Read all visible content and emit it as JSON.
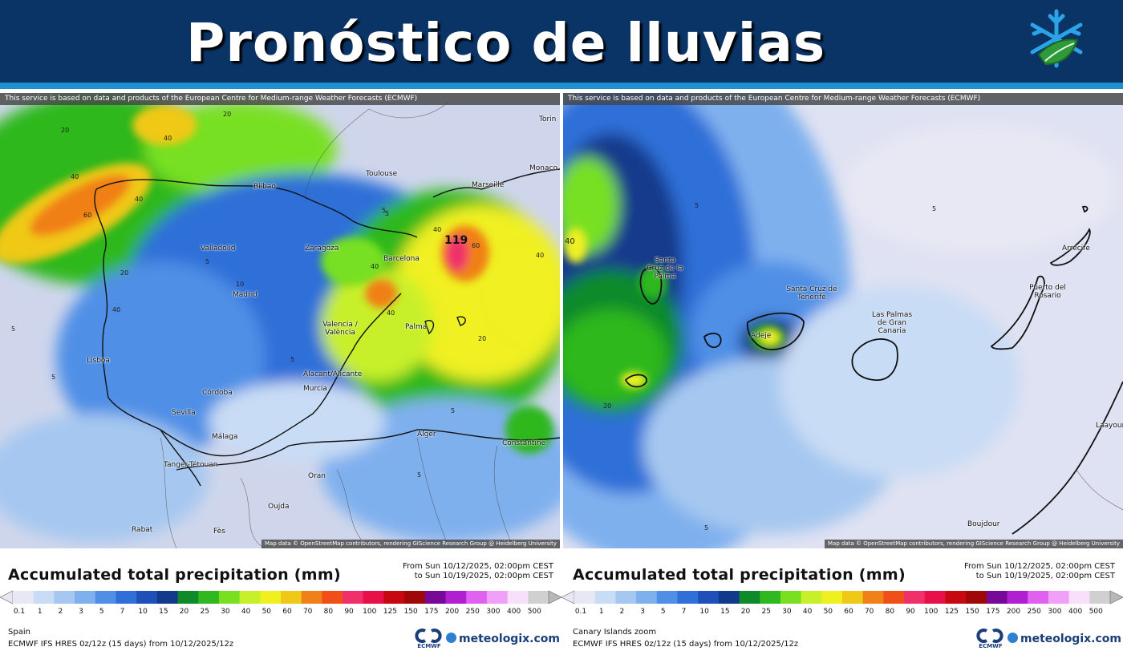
{
  "header": {
    "title": "Pronóstico de lluvias",
    "logo_icon": "snowflake-leaf-icon",
    "colors": {
      "banner": "#0a3366",
      "stripe": "#1e8fd0"
    }
  },
  "panels": [
    {
      "region": "Spain",
      "credit_top": "This service is based on data and products of the European Centre for Medium-range Weather Forecasts (ECMWF)",
      "credit_bottom": "Map data © OpenStreetMap contributors, rendering GIScience Research Group @ Heidelberg University",
      "cities": [
        "Torin",
        "Monaco",
        "Toulouse",
        "Marseille",
        "Bilbao",
        "Valladolid",
        "Zaragoza",
        "Barcelona",
        "Madrid",
        "Valencia / València",
        "Palma",
        "Lisboa",
        "Alacant/Alicante",
        "Murcia",
        "Córdoba",
        "Sevilla",
        "Málaga",
        "Alger",
        "Constantine",
        "Tanger-Tétouan",
        "Oran",
        "Oujda",
        "Rabat",
        "Fès"
      ],
      "labels": [
        "20",
        "40",
        "40",
        "60",
        "40",
        "20",
        "40",
        "5",
        "119",
        "60",
        "40",
        "40",
        "20",
        "40",
        "40",
        "20",
        "5",
        "5",
        "5",
        "5",
        "5",
        "10",
        "5",
        "5"
      ],
      "max_value": "119"
    },
    {
      "region": "Canary Islands zoom",
      "credit_top": "This service is based on data and products of the European Centre for Medium-range Weather Forecasts (ECMWF)",
      "credit_bottom": "Map data © OpenStreetMap contributors, rendering GIScience Research Group @ Heidelberg University",
      "cities": [
        "Santa Cruz de la Palma",
        "Santa Cruz de Tenerife",
        "Adeje",
        "Las Palmas de Gran Canaria",
        "Puerto del Rosario",
        "Arrecife",
        "Laayoune",
        "Boujdour"
      ],
      "labels": [
        "40",
        "5",
        "20",
        "5",
        "5"
      ]
    }
  ],
  "legend": {
    "title": "Accumulated total precipitation (mm)",
    "from": "From Sun 10/12/2025, 02:00pm CEST",
    "to": "to Sun 10/19/2025, 02:00pm CEST",
    "ticks": [
      "0.1",
      "1",
      "2",
      "3",
      "5",
      "7",
      "10",
      "15",
      "20",
      "25",
      "30",
      "40",
      "50",
      "60",
      "70",
      "80",
      "90",
      "100",
      "125",
      "150",
      "175",
      "200",
      "250",
      "300",
      "400",
      "500"
    ],
    "colors": [
      "#e8e8f4",
      "#c9dcf5",
      "#a6c8f0",
      "#7fb0ee",
      "#4f8fe6",
      "#2f6fd8",
      "#1f4fb8",
      "#123a8c",
      "#0f8a2a",
      "#2fb81f",
      "#78e020",
      "#c8f02a",
      "#f0f020",
      "#f0c818",
      "#f08018",
      "#f05018",
      "#f0306a",
      "#e81048",
      "#c80810",
      "#a00808",
      "#780898",
      "#b020d0",
      "#e060f0",
      "#f0a0f8",
      "#f8e0fa",
      "#d0d0d0"
    ],
    "models": [
      "ECMWF IFS HRES 0z/12z (15 days) from 10/12/2025/12z",
      "ECMWF IFS HRES 0z/12z (15 days) from 10/12/2025/12z"
    ],
    "ecmwf_label": "ECMWF",
    "brand": "meteologix.com"
  }
}
